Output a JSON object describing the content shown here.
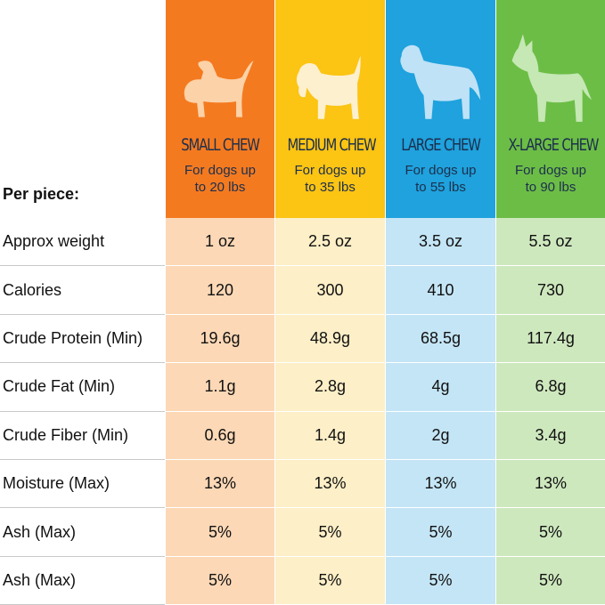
{
  "per_piece": "Per piece:",
  "columns": [
    {
      "title": "SMALL CHEW",
      "subtitle": "For dogs up to 20 lbs"
    },
    {
      "title": "MEDIUM CHEW",
      "subtitle": "For dogs up to 35 lbs"
    },
    {
      "title": "LARGE CHEW",
      "subtitle": "For dogs up to 55 lbs"
    },
    {
      "title": "X-LARGE CHEW",
      "subtitle": "For dogs up to 90 lbs"
    }
  ],
  "rows": [
    {
      "label": "Approx weight",
      "values": [
        "1 oz",
        "2.5 oz",
        "3.5 oz",
        "5.5 oz"
      ]
    },
    {
      "label": "Calories",
      "values": [
        "120",
        "300",
        "410",
        "730"
      ]
    },
    {
      "label": "Crude Protein (Min)",
      "values": [
        "19.6g",
        "48.9g",
        "68.5g",
        "117.4g"
      ]
    },
    {
      "label": "Crude Fat (Min)",
      "values": [
        "1.1g",
        "2.8g",
        "4g",
        "6.8g"
      ]
    },
    {
      "label": "Crude Fiber (Min)",
      "values": [
        "0.6g",
        "1.4g",
        "2g",
        "3.4g"
      ]
    },
    {
      "label": "Moisture (Max)",
      "values": [
        "13%",
        "13%",
        "13%",
        "13%"
      ]
    },
    {
      "label": "Ash (Max)",
      "values": [
        "5%",
        "5%",
        "5%",
        "5%"
      ]
    },
    {
      "label": "Ash (Max)",
      "values": [
        "5%",
        "5%",
        "5%",
        "5%"
      ]
    }
  ]
}
